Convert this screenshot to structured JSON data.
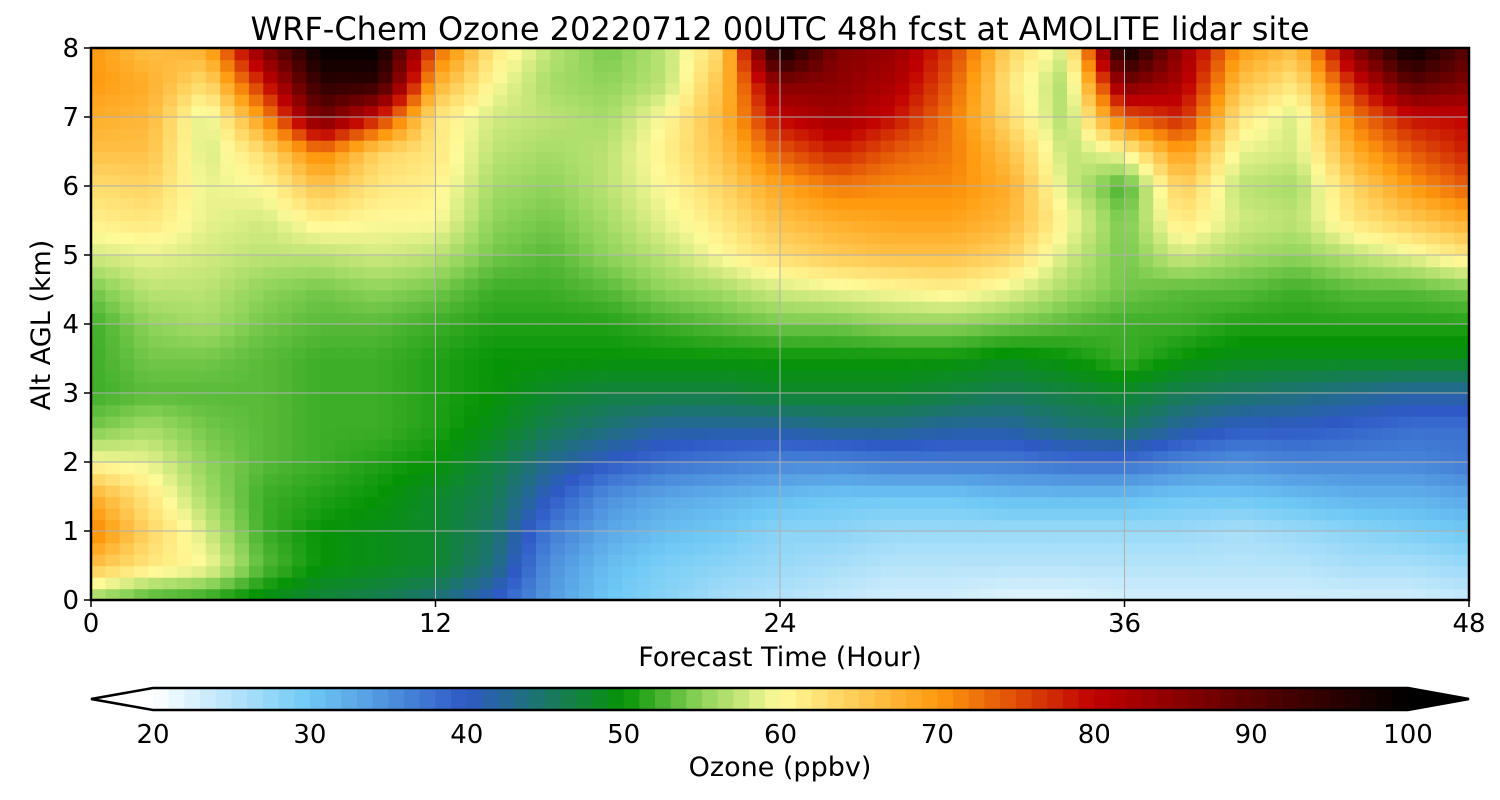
{
  "chart_data": {
    "type": "heatmap",
    "title": "WRF-Chem Ozone  20220712 00UTC 48h fcst at AMOLITE lidar site",
    "xlabel": "Forecast Time (Hour)",
    "ylabel": "Alt AGL (km)",
    "xlim": [
      0,
      48
    ],
    "ylim": [
      0,
      8
    ],
    "x_ticks": [
      0,
      12,
      24,
      36,
      48
    ],
    "y_ticks": [
      0,
      1,
      2,
      3,
      4,
      5,
      6,
      7,
      8
    ],
    "grid": true,
    "colorbar": {
      "label": "Ozone  (ppbv)",
      "min": 20,
      "max": 100,
      "ticks": [
        20,
        30,
        40,
        50,
        60,
        70,
        80,
        90,
        100
      ],
      "extend": "both",
      "stops": [
        {
          "v": 20,
          "c": "#ffffff"
        },
        {
          "v": 30,
          "c": "#6ec9f5"
        },
        {
          "v": 40,
          "c": "#2e59c6"
        },
        {
          "v": 50,
          "c": "#069406"
        },
        {
          "v": 55,
          "c": "#8fd45a"
        },
        {
          "v": 60,
          "c": "#fffa99"
        },
        {
          "v": 70,
          "c": "#ff9a0e"
        },
        {
          "v": 80,
          "c": "#c00000"
        },
        {
          "v": 90,
          "c": "#5a0000"
        },
        {
          "v": 100,
          "c": "#000000"
        }
      ]
    },
    "x": [
      0,
      2,
      4,
      6,
      8,
      10,
      12,
      14,
      16,
      18,
      20,
      22,
      24,
      26,
      28,
      30,
      32,
      34,
      36,
      38,
      40,
      42,
      44,
      46,
      48
    ],
    "y": [
      0,
      0.5,
      1,
      1.5,
      2,
      2.5,
      3,
      3.5,
      4,
      4.5,
      5,
      5.5,
      6,
      6.5,
      7,
      7.5,
      8
    ],
    "z": [
      [
        55,
        52,
        51,
        49,
        47,
        46,
        44,
        40,
        34,
        30,
        28,
        26,
        25,
        24,
        23,
        23,
        22,
        22,
        23,
        23,
        23,
        23,
        23,
        23,
        24
      ],
      [
        66,
        62,
        60,
        53,
        50,
        49,
        48,
        44,
        35,
        31,
        29,
        28,
        27,
        26,
        25,
        25,
        25,
        25,
        25,
        25,
        25,
        25,
        26,
        26,
        27
      ],
      [
        72,
        64,
        58,
        52,
        50,
        49,
        48,
        45,
        37,
        33,
        31,
        30,
        28,
        28,
        27,
        27,
        27,
        27,
        27,
        27,
        26,
        27,
        28,
        29,
        30
      ],
      [
        68,
        62,
        56,
        52,
        51,
        50,
        48,
        46,
        40,
        35,
        33,
        32,
        31,
        30,
        30,
        30,
        31,
        31,
        31,
        30,
        30,
        31,
        32,
        32,
        33
      ],
      [
        60,
        59,
        55,
        53,
        52,
        51,
        50,
        47,
        43,
        40,
        38,
        37,
        36,
        36,
        37,
        37,
        37,
        38,
        38,
        36,
        35,
        36,
        36,
        36,
        37
      ],
      [
        54,
        56,
        54,
        53,
        52,
        52,
        51,
        49,
        46,
        44,
        42,
        42,
        42,
        43,
        43,
        42,
        42,
        44,
        45,
        42,
        40,
        40,
        39,
        38,
        38
      ],
      [
        52,
        53,
        53,
        53,
        52,
        52,
        51,
        50,
        48,
        47,
        47,
        47,
        48,
        48,
        48,
        47,
        46,
        47,
        48,
        46,
        45,
        44,
        43,
        42,
        42
      ],
      [
        52,
        54,
        54,
        53,
        52,
        52,
        51,
        50,
        50,
        50,
        50,
        50,
        50,
        50,
        50,
        50,
        49,
        50,
        52,
        50,
        49,
        49,
        49,
        49,
        49
      ],
      [
        52,
        55,
        56,
        54,
        53,
        53,
        52,
        51,
        51,
        51,
        52,
        53,
        54,
        54,
        55,
        55,
        54,
        53,
        52,
        52,
        51,
        51,
        51,
        51,
        51
      ],
      [
        54,
        57,
        57,
        55,
        54,
        55,
        54,
        52,
        52,
        53,
        55,
        56,
        58,
        59,
        60,
        61,
        59,
        56,
        54,
        53,
        53,
        52,
        53,
        53,
        54
      ],
      [
        58,
        59,
        58,
        57,
        57,
        58,
        57,
        54,
        53,
        55,
        57,
        60,
        63,
        65,
        66,
        66,
        64,
        58,
        54,
        58,
        56,
        55,
        57,
        59,
        62
      ],
      [
        61,
        62,
        59,
        58,
        61,
        60,
        60,
        55,
        54,
        56,
        59,
        62,
        66,
        68,
        69,
        69,
        67,
        60,
        54,
        62,
        58,
        57,
        62,
        65,
        68
      ],
      [
        63,
        64,
        59,
        60,
        66,
        62,
        61,
        56,
        55,
        57,
        60,
        64,
        69,
        72,
        71,
        71,
        68,
        58,
        52,
        65,
        57,
        56,
        64,
        70,
        74
      ],
      [
        66,
        66,
        58,
        63,
        72,
        64,
        62,
        57,
        56,
        57,
        61,
        66,
        74,
        78,
        74,
        72,
        66,
        57,
        60,
        70,
        59,
        58,
        68,
        74,
        78
      ],
      [
        68,
        67,
        58,
        70,
        88,
        78,
        62,
        58,
        57,
        56,
        60,
        67,
        80,
        83,
        79,
        72,
        63,
        56,
        74,
        78,
        62,
        58,
        72,
        79,
        80
      ],
      [
        70,
        68,
        63,
        78,
        95,
        95,
        68,
        60,
        56,
        55,
        57,
        66,
        86,
        85,
        82,
        74,
        62,
        56,
        87,
        82,
        66,
        62,
        78,
        90,
        86
      ],
      [
        70,
        66,
        68,
        86,
        100,
        100,
        74,
        62,
        57,
        54,
        57,
        64,
        100,
        86,
        84,
        76,
        64,
        58,
        100,
        84,
        70,
        66,
        86,
        100,
        90
      ]
    ]
  }
}
